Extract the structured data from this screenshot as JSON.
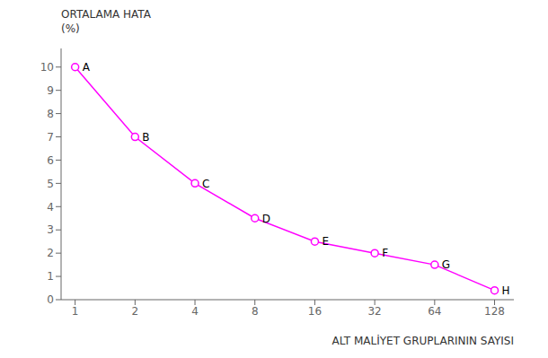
{
  "chart_data": {
    "type": "line",
    "x": [
      1,
      2,
      4,
      8,
      16,
      32,
      64,
      128
    ],
    "values": [
      10.0,
      7.0,
      5.0,
      3.5,
      2.5,
      2.0,
      1.5,
      0.4
    ],
    "labels": [
      "A",
      "B",
      "C",
      "D",
      "E",
      "F",
      "G",
      "H"
    ],
    "color": "#FF00FF",
    "marker": "circle",
    "ylabel": [
      "ORTALAMA HATA",
      "(%)"
    ],
    "xlabel": "ALT MALİYET GRUPLARININ SAYISI",
    "log": "x",
    "xlim": [
      0.85,
      160
    ],
    "xticks": [
      1,
      2,
      4,
      8,
      16,
      32,
      64,
      128
    ],
    "ylim": [
      0,
      10.8
    ],
    "yticks": [
      0,
      1,
      2,
      3,
      4,
      5,
      6,
      7,
      8,
      9,
      10
    ],
    "grid": false
  }
}
